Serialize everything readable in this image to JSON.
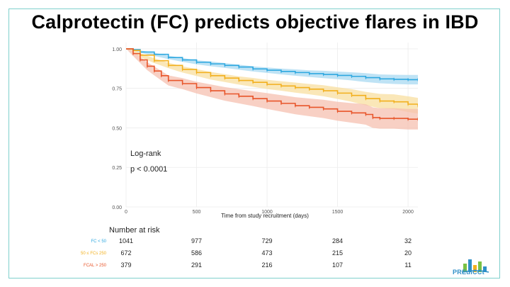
{
  "slide": {
    "title": "Calprotectin (FC) predicts objective flares in IBD",
    "logo_text": "PREdiCCt",
    "logo_icon": "city-skyline-icon"
  },
  "chart_data": {
    "type": "line",
    "subtype": "kaplan-meier",
    "xlabel": "Time from study recruitment (days)",
    "ylabel": "",
    "xlim": [
      0,
      2070
    ],
    "ylim": [
      0,
      1.04
    ],
    "x_ticks": [
      0,
      500,
      1000,
      1500,
      2000
    ],
    "y_ticks": [
      0.0,
      0.25,
      0.5,
      0.75,
      1.0
    ],
    "y_tick_labels": [
      "0.00",
      "0.25",
      "0.50",
      "0.75",
      "1.00"
    ],
    "annotation": {
      "line1": "Log-rank",
      "line2": "p < 0.0001"
    },
    "series": [
      {
        "name": "FC < 50",
        "color": "#2ea8e0",
        "band_color": "#a9d9f2",
        "x": [
          0,
          50,
          100,
          200,
          300,
          400,
          500,
          600,
          700,
          800,
          900,
          1000,
          1100,
          1200,
          1300,
          1400,
          1500,
          1600,
          1700,
          1800,
          1900,
          2000,
          2070
        ],
        "y": [
          1.0,
          0.995,
          0.98,
          0.965,
          0.945,
          0.93,
          0.915,
          0.905,
          0.895,
          0.885,
          0.873,
          0.865,
          0.857,
          0.85,
          0.843,
          0.838,
          0.832,
          0.826,
          0.818,
          0.81,
          0.807,
          0.805,
          0.805
        ],
        "lower": [
          1.0,
          0.99,
          0.975,
          0.955,
          0.935,
          0.918,
          0.902,
          0.89,
          0.88,
          0.868,
          0.857,
          0.848,
          0.838,
          0.83,
          0.822,
          0.815,
          0.808,
          0.8,
          0.79,
          0.782,
          0.778,
          0.775,
          0.775
        ],
        "upper": [
          1.0,
          1.0,
          0.99,
          0.975,
          0.957,
          0.942,
          0.928,
          0.92,
          0.91,
          0.9,
          0.889,
          0.882,
          0.875,
          0.87,
          0.864,
          0.861,
          0.856,
          0.852,
          0.846,
          0.838,
          0.836,
          0.835,
          0.835
        ]
      },
      {
        "name": "50 ≤ FCs 250",
        "color": "#f2b01e",
        "band_color": "#f8dfa0",
        "x": [
          0,
          50,
          100,
          200,
          300,
          400,
          500,
          600,
          700,
          800,
          900,
          1000,
          1100,
          1200,
          1300,
          1400,
          1500,
          1600,
          1700,
          1800,
          1900,
          2000,
          2070
        ],
        "y": [
          1.0,
          0.99,
          0.96,
          0.925,
          0.895,
          0.87,
          0.85,
          0.83,
          0.815,
          0.8,
          0.788,
          0.775,
          0.765,
          0.755,
          0.745,
          0.735,
          0.72,
          0.705,
          0.685,
          0.67,
          0.665,
          0.65,
          0.64
        ],
        "lower": [
          1.0,
          0.98,
          0.948,
          0.91,
          0.878,
          0.85,
          0.828,
          0.806,
          0.79,
          0.774,
          0.76,
          0.746,
          0.735,
          0.723,
          0.712,
          0.7,
          0.683,
          0.665,
          0.642,
          0.625,
          0.618,
          0.6,
          0.59
        ],
        "upper": [
          1.0,
          1.0,
          0.972,
          0.94,
          0.912,
          0.89,
          0.872,
          0.854,
          0.84,
          0.826,
          0.816,
          0.804,
          0.795,
          0.787,
          0.778,
          0.77,
          0.757,
          0.745,
          0.728,
          0.715,
          0.712,
          0.7,
          0.69
        ]
      },
      {
        "name": "FCAL > 250",
        "color": "#e8552a",
        "band_color": "#f6c0b0",
        "x": [
          0,
          50,
          100,
          150,
          200,
          250,
          300,
          400,
          500,
          600,
          700,
          800,
          900,
          1000,
          1100,
          1200,
          1300,
          1400,
          1500,
          1600,
          1700,
          1750,
          1800,
          1900,
          2000,
          2070
        ],
        "y": [
          1.0,
          0.97,
          0.93,
          0.89,
          0.86,
          0.83,
          0.8,
          0.78,
          0.755,
          0.735,
          0.715,
          0.7,
          0.685,
          0.67,
          0.655,
          0.64,
          0.63,
          0.62,
          0.605,
          0.595,
          0.585,
          0.565,
          0.56,
          0.56,
          0.555,
          0.555
        ],
        "lower": [
          1.0,
          0.955,
          0.91,
          0.865,
          0.832,
          0.8,
          0.768,
          0.745,
          0.718,
          0.695,
          0.672,
          0.655,
          0.638,
          0.62,
          0.603,
          0.586,
          0.574,
          0.562,
          0.545,
          0.533,
          0.52,
          0.5,
          0.495,
          0.495,
          0.49,
          0.49
        ],
        "upper": [
          1.0,
          0.985,
          0.95,
          0.915,
          0.888,
          0.86,
          0.832,
          0.815,
          0.792,
          0.775,
          0.758,
          0.745,
          0.732,
          0.72,
          0.707,
          0.694,
          0.686,
          0.678,
          0.665,
          0.657,
          0.65,
          0.63,
          0.625,
          0.625,
          0.62,
          0.62
        ]
      }
    ],
    "risk_table": {
      "title": "Number at risk",
      "times": [
        0,
        500,
        1000,
        1500,
        2000
      ],
      "rows": [
        {
          "label": "FC < 50",
          "color": "#2ea8e0",
          "counts": [
            "1041",
            "977",
            "729",
            "284",
            "32"
          ]
        },
        {
          "label": "50 ≤ FCs 250",
          "color": "#f2b01e",
          "counts": [
            "672",
            "586",
            "473",
            "215",
            "20"
          ]
        },
        {
          "label": "FCAL > 250",
          "color": "#e8552a",
          "counts": [
            "379",
            "291",
            "216",
            "107",
            "11"
          ]
        }
      ]
    }
  }
}
